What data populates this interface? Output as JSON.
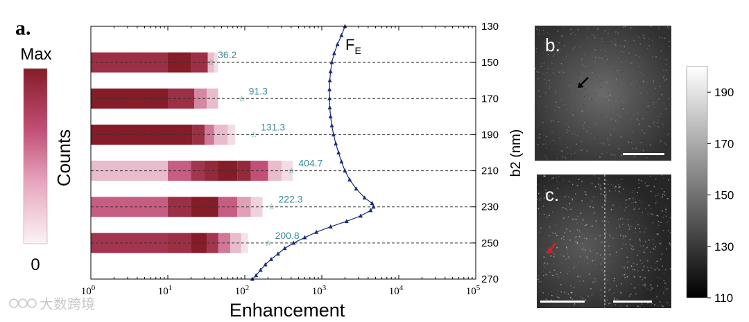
{
  "panel_labels": {
    "a": "a.",
    "b": "b.",
    "c": "c."
  },
  "colorbar_counts": {
    "max_label": "Max",
    "min_label": "0",
    "title": "Counts",
    "color_low": "#fbf3f6",
    "color_high": "#861c27"
  },
  "chart_data": {
    "type": "bar",
    "xlabel": "Enhancement",
    "ylabel": "b2 (nm)",
    "x_scale": "log",
    "xlim": [
      1,
      100000
    ],
    "ylim": [
      270,
      130
    ],
    "x_tick_labels": [
      "10^0",
      "10^1",
      "10^2",
      "10^3",
      "10^4",
      "10^5"
    ],
    "x_ticks": [
      1,
      10,
      100,
      1000,
      10000,
      100000
    ],
    "y_ticks": [
      130,
      150,
      170,
      190,
      210,
      230,
      250,
      270
    ],
    "grid": "dashed lines at bar rows",
    "distributions": [
      {
        "b2": 150,
        "mean_label": "36.2",
        "mean": 36.2,
        "cells": [
          [
            1,
            10,
            0.85
          ],
          [
            10,
            20,
            1.0
          ],
          [
            20,
            33,
            0.85
          ],
          [
            33,
            40,
            0.2
          ],
          [
            40,
            45,
            0.08
          ]
        ]
      },
      {
        "b2": 170,
        "mean_label": "91.3",
        "mean": 91.3,
        "cells": [
          [
            1,
            10,
            1.0
          ],
          [
            10,
            22,
            0.85
          ],
          [
            22,
            32,
            0.4
          ],
          [
            32,
            45,
            0.2
          ]
        ]
      },
      {
        "b2": 190,
        "mean_label": "131.3",
        "mean": 131.3,
        "cells": [
          [
            1,
            21,
            1.0
          ],
          [
            21,
            30,
            0.85
          ],
          [
            30,
            40,
            0.45
          ],
          [
            40,
            60,
            0.2
          ],
          [
            60,
            75,
            0.08
          ]
        ]
      },
      {
        "b2": 210,
        "mean_label": "404.7",
        "mean": 404.7,
        "cells": [
          [
            1,
            10,
            0.2
          ],
          [
            10,
            20,
            0.55
          ],
          [
            20,
            30,
            0.8
          ],
          [
            30,
            45,
            0.9
          ],
          [
            45,
            80,
            1.0
          ],
          [
            80,
            120,
            0.9
          ],
          [
            120,
            200,
            0.6
          ],
          [
            200,
            300,
            0.2
          ],
          [
            300,
            420,
            0.08
          ]
        ]
      },
      {
        "b2": 230,
        "mean_label": "222.3",
        "mean": 222.3,
        "cells": [
          [
            1,
            10,
            0.55
          ],
          [
            10,
            20,
            0.85
          ],
          [
            20,
            45,
            1.0
          ],
          [
            45,
            80,
            0.55
          ],
          [
            80,
            120,
            0.3
          ],
          [
            120,
            170,
            0.12
          ]
        ]
      },
      {
        "b2": 250,
        "mean_label": "200.8",
        "mean": 200.8,
        "cells": [
          [
            1,
            10,
            0.8
          ],
          [
            10,
            20,
            0.85
          ],
          [
            20,
            32,
            1.0
          ],
          [
            32,
            45,
            0.8
          ],
          [
            45,
            65,
            0.45
          ],
          [
            65,
            90,
            0.2
          ],
          [
            90,
            110,
            0.06
          ]
        ]
      }
    ],
    "fe_curve": {
      "name_main": "F",
      "name_sub": "E",
      "color": "#1b2a7a",
      "points": [
        [
          2000,
          130
        ],
        [
          1800,
          135
        ],
        [
          1600,
          140
        ],
        [
          1450,
          145
        ],
        [
          1350,
          150
        ],
        [
          1300,
          155
        ],
        [
          1270,
          160
        ],
        [
          1260,
          165
        ],
        [
          1260,
          170
        ],
        [
          1270,
          175
        ],
        [
          1300,
          180
        ],
        [
          1350,
          185
        ],
        [
          1420,
          190
        ],
        [
          1520,
          195
        ],
        [
          1650,
          200
        ],
        [
          1800,
          205
        ],
        [
          2000,
          210
        ],
        [
          2300,
          215
        ],
        [
          2800,
          220
        ],
        [
          3600,
          225
        ],
        [
          4500,
          228
        ],
        [
          4700,
          230
        ],
        [
          4300,
          232
        ],
        [
          3200,
          235
        ],
        [
          2100,
          238
        ],
        [
          1300,
          241
        ],
        [
          850,
          244
        ],
        [
          600,
          247
        ],
        [
          430,
          250
        ],
        [
          330,
          253
        ],
        [
          270,
          256
        ],
        [
          220,
          259
        ],
        [
          185,
          262
        ],
        [
          160,
          265
        ],
        [
          140,
          268
        ],
        [
          125,
          270
        ]
      ]
    },
    "mean_marker_color": "#3d8b96"
  },
  "micrographs": {
    "b_arrow_color": "#000000",
    "c_arrow_color": "#d4202a"
  },
  "colorbar_gray": {
    "ticks": [
      "190",
      "170",
      "150",
      "130",
      "110"
    ],
    "tick_values": [
      190,
      170,
      150,
      130,
      110
    ],
    "range": [
      110,
      200
    ]
  },
  "watermark": {
    "text": "大数跨境"
  }
}
